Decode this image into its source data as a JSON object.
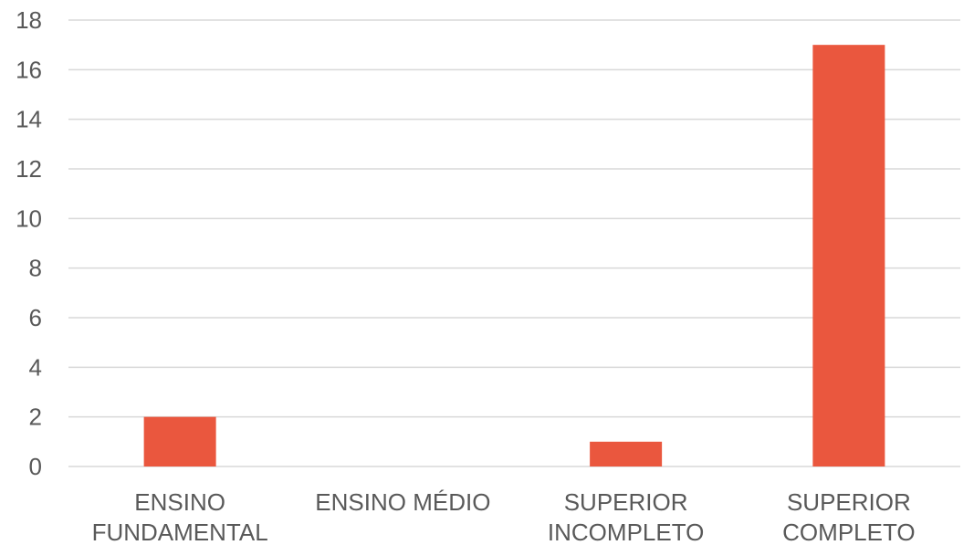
{
  "chart_data": {
    "type": "bar",
    "title": "",
    "xlabel": "",
    "ylabel": "",
    "categories": [
      [
        "ENSINO",
        "FUNDAMENTAL"
      ],
      [
        "ENSINO MÉDIO"
      ],
      [
        "SUPERIOR",
        "INCOMPLETO"
      ],
      [
        "SUPERIOR",
        "COMPLETO"
      ]
    ],
    "values": [
      2,
      0,
      1,
      17
    ],
    "ylim": [
      0,
      18
    ],
    "yticks": [
      0,
      2,
      4,
      6,
      8,
      10,
      12,
      14,
      16,
      18
    ],
    "grid": true,
    "legend": "none",
    "colors": {
      "bar": "#ea573e",
      "grid": "#d9d9d9",
      "text": "#595959"
    }
  }
}
